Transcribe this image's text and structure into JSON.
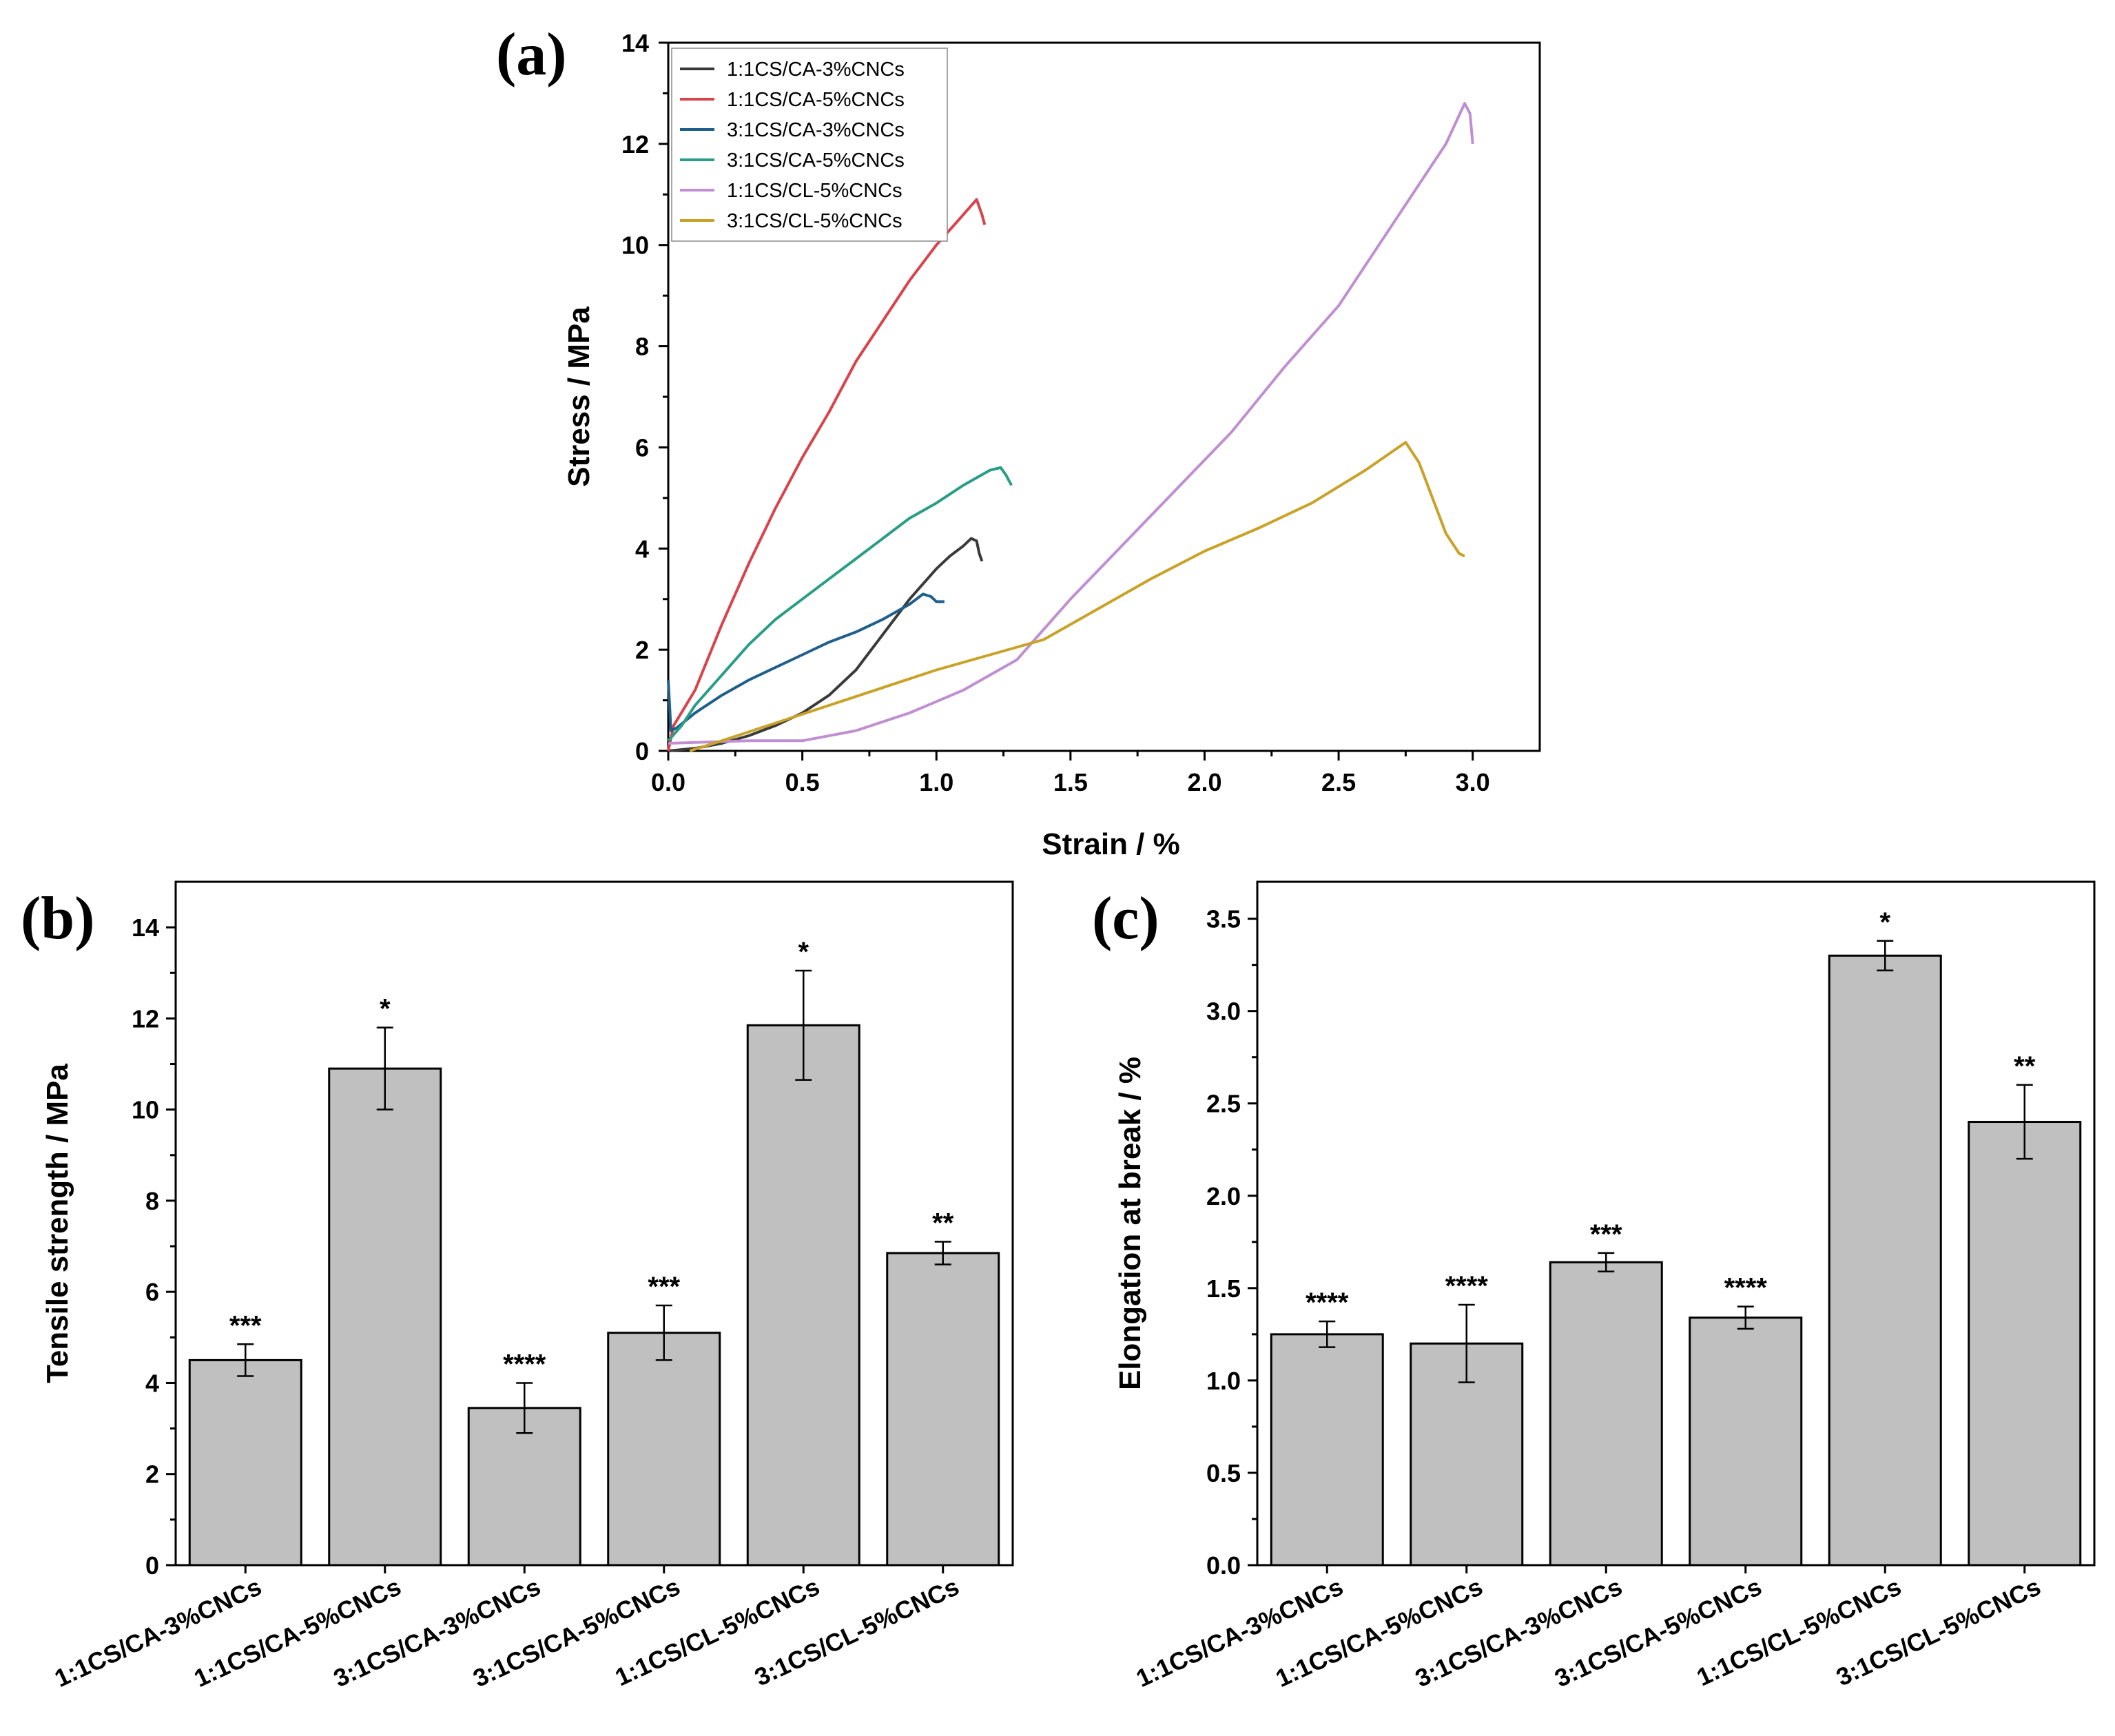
{
  "chart_data": [
    {
      "panel": "(a)",
      "type": "line",
      "xlabel": "Strain / %",
      "ylabel": "Stress / MPa",
      "xlim": [
        0,
        3.25
      ],
      "ylim": [
        0,
        14
      ],
      "xticks": [
        "0.0",
        "0.5",
        "1.0",
        "1.5",
        "2.0",
        "2.5",
        "3.0"
      ],
      "yticks": [
        "0",
        "2",
        "4",
        "6",
        "8",
        "10",
        "12",
        "14"
      ],
      "legend_position": "top-left",
      "series": [
        {
          "name": "1:1CS/CA-3%CNCs",
          "color": "#3a3a3a",
          "x": [
            0,
            0.1,
            0.2,
            0.3,
            0.4,
            0.5,
            0.6,
            0.7,
            0.8,
            0.9,
            1.0,
            1.05,
            1.1,
            1.13,
            1.15,
            1.16,
            1.17
          ],
          "y": [
            0,
            0.05,
            0.15,
            0.3,
            0.5,
            0.75,
            1.1,
            1.6,
            2.3,
            3.0,
            3.6,
            3.85,
            4.05,
            4.2,
            4.15,
            3.9,
            3.75
          ]
        },
        {
          "name": "1:1CS/CA-5%CNCs",
          "color": "#d9434b",
          "x": [
            0,
            0.02,
            0.1,
            0.2,
            0.3,
            0.4,
            0.5,
            0.6,
            0.7,
            0.8,
            0.9,
            1.0,
            1.1,
            1.15,
            1.17,
            1.18
          ],
          "y": [
            0,
            0.5,
            1.2,
            2.5,
            3.7,
            4.8,
            5.8,
            6.7,
            7.7,
            8.5,
            9.3,
            10.0,
            10.6,
            10.9,
            10.6,
            10.4
          ]
        },
        {
          "name": "3:1CS/CA-3%CNCs",
          "color": "#1f5f8b",
          "x": [
            0,
            0.01,
            0.03,
            0.1,
            0.2,
            0.3,
            0.4,
            0.5,
            0.6,
            0.7,
            0.8,
            0.9,
            0.95,
            0.98,
            1.0,
            1.03
          ],
          "y": [
            1.4,
            0.4,
            0.45,
            0.75,
            1.1,
            1.4,
            1.65,
            1.9,
            2.15,
            2.35,
            2.6,
            2.9,
            3.1,
            3.05,
            2.95,
            2.95
          ]
        },
        {
          "name": "3:1CS/CA-5%CNCs",
          "color": "#2a9d86",
          "x": [
            0,
            0.05,
            0.1,
            0.2,
            0.3,
            0.4,
            0.5,
            0.6,
            0.7,
            0.8,
            0.9,
            1.0,
            1.1,
            1.2,
            1.24,
            1.26,
            1.28
          ],
          "y": [
            0.2,
            0.5,
            0.9,
            1.5,
            2.1,
            2.6,
            3.0,
            3.4,
            3.8,
            4.2,
            4.6,
            4.9,
            5.25,
            5.55,
            5.6,
            5.45,
            5.25
          ]
        },
        {
          "name": "1:1CS/CL-5%CNCs",
          "color": "#c08fd2",
          "x": [
            0,
            0.3,
            0.5,
            0.7,
            0.9,
            1.1,
            1.3,
            1.5,
            1.7,
            1.9,
            2.1,
            2.3,
            2.5,
            2.7,
            2.9,
            2.97,
            2.99,
            3.0
          ],
          "y": [
            0.15,
            0.2,
            0.2,
            0.4,
            0.75,
            1.2,
            1.8,
            3.0,
            4.1,
            5.2,
            6.3,
            7.6,
            8.8,
            10.4,
            12.0,
            12.8,
            12.6,
            12.0
          ]
        },
        {
          "name": "3:1CS/CL-5%CNCs",
          "color": "#c9a227",
          "x": [
            0.08,
            0.2,
            0.4,
            0.6,
            0.8,
            1.0,
            1.2,
            1.4,
            1.6,
            1.8,
            2.0,
            2.2,
            2.4,
            2.6,
            2.75,
            2.8,
            2.85,
            2.9,
            2.95,
            2.97
          ],
          "y": [
            0,
            0.2,
            0.55,
            0.9,
            1.25,
            1.6,
            1.9,
            2.2,
            2.8,
            3.4,
            3.95,
            4.4,
            4.9,
            5.55,
            6.1,
            5.7,
            5.0,
            4.3,
            3.9,
            3.85
          ]
        }
      ]
    },
    {
      "panel": "(b)",
      "type": "bar",
      "ylabel": "Tensile strength / MPa",
      "ylim": [
        0,
        15
      ],
      "yticks": [
        "0",
        "2",
        "4",
        "6",
        "8",
        "10",
        "12",
        "14"
      ],
      "categories": [
        "1:1CS/CA-3%CNCs",
        "1:1CS/CA-5%CNCs",
        "3:1CS/CA-3%CNCs",
        "3:1CS/CA-5%CNCs",
        "1:1CS/CL-5%CNCs",
        "3:1CS/CL-5%CNCs"
      ],
      "values": [
        4.5,
        10.9,
        3.45,
        5.1,
        11.85,
        6.85
      ],
      "errors": [
        0.35,
        0.9,
        0.55,
        0.6,
        1.2,
        0.25
      ],
      "significance": [
        "***",
        "*",
        "****",
        "***",
        "*",
        "**"
      ]
    },
    {
      "panel": "(c)",
      "type": "bar",
      "ylabel": "Elongation at break / %",
      "ylim": [
        0,
        3.7
      ],
      "yticks": [
        "0.0",
        "0.5",
        "1.0",
        "1.5",
        "2.0",
        "2.5",
        "3.0",
        "3.5"
      ],
      "categories": [
        "1:1CS/CA-3%CNCs",
        "1:1CS/CA-5%CNCs",
        "3:1CS/CA-3%CNCs",
        "3:1CS/CA-5%CNCs",
        "1:1CS/CL-5%CNCs",
        "3:1CS/CL-5%CNCs"
      ],
      "values": [
        1.25,
        1.2,
        1.64,
        1.34,
        3.3,
        2.4
      ],
      "errors": [
        0.07,
        0.21,
        0.05,
        0.06,
        0.08,
        0.2
      ],
      "significance": [
        "****",
        "****",
        "***",
        "****",
        "*",
        "**"
      ]
    }
  ]
}
